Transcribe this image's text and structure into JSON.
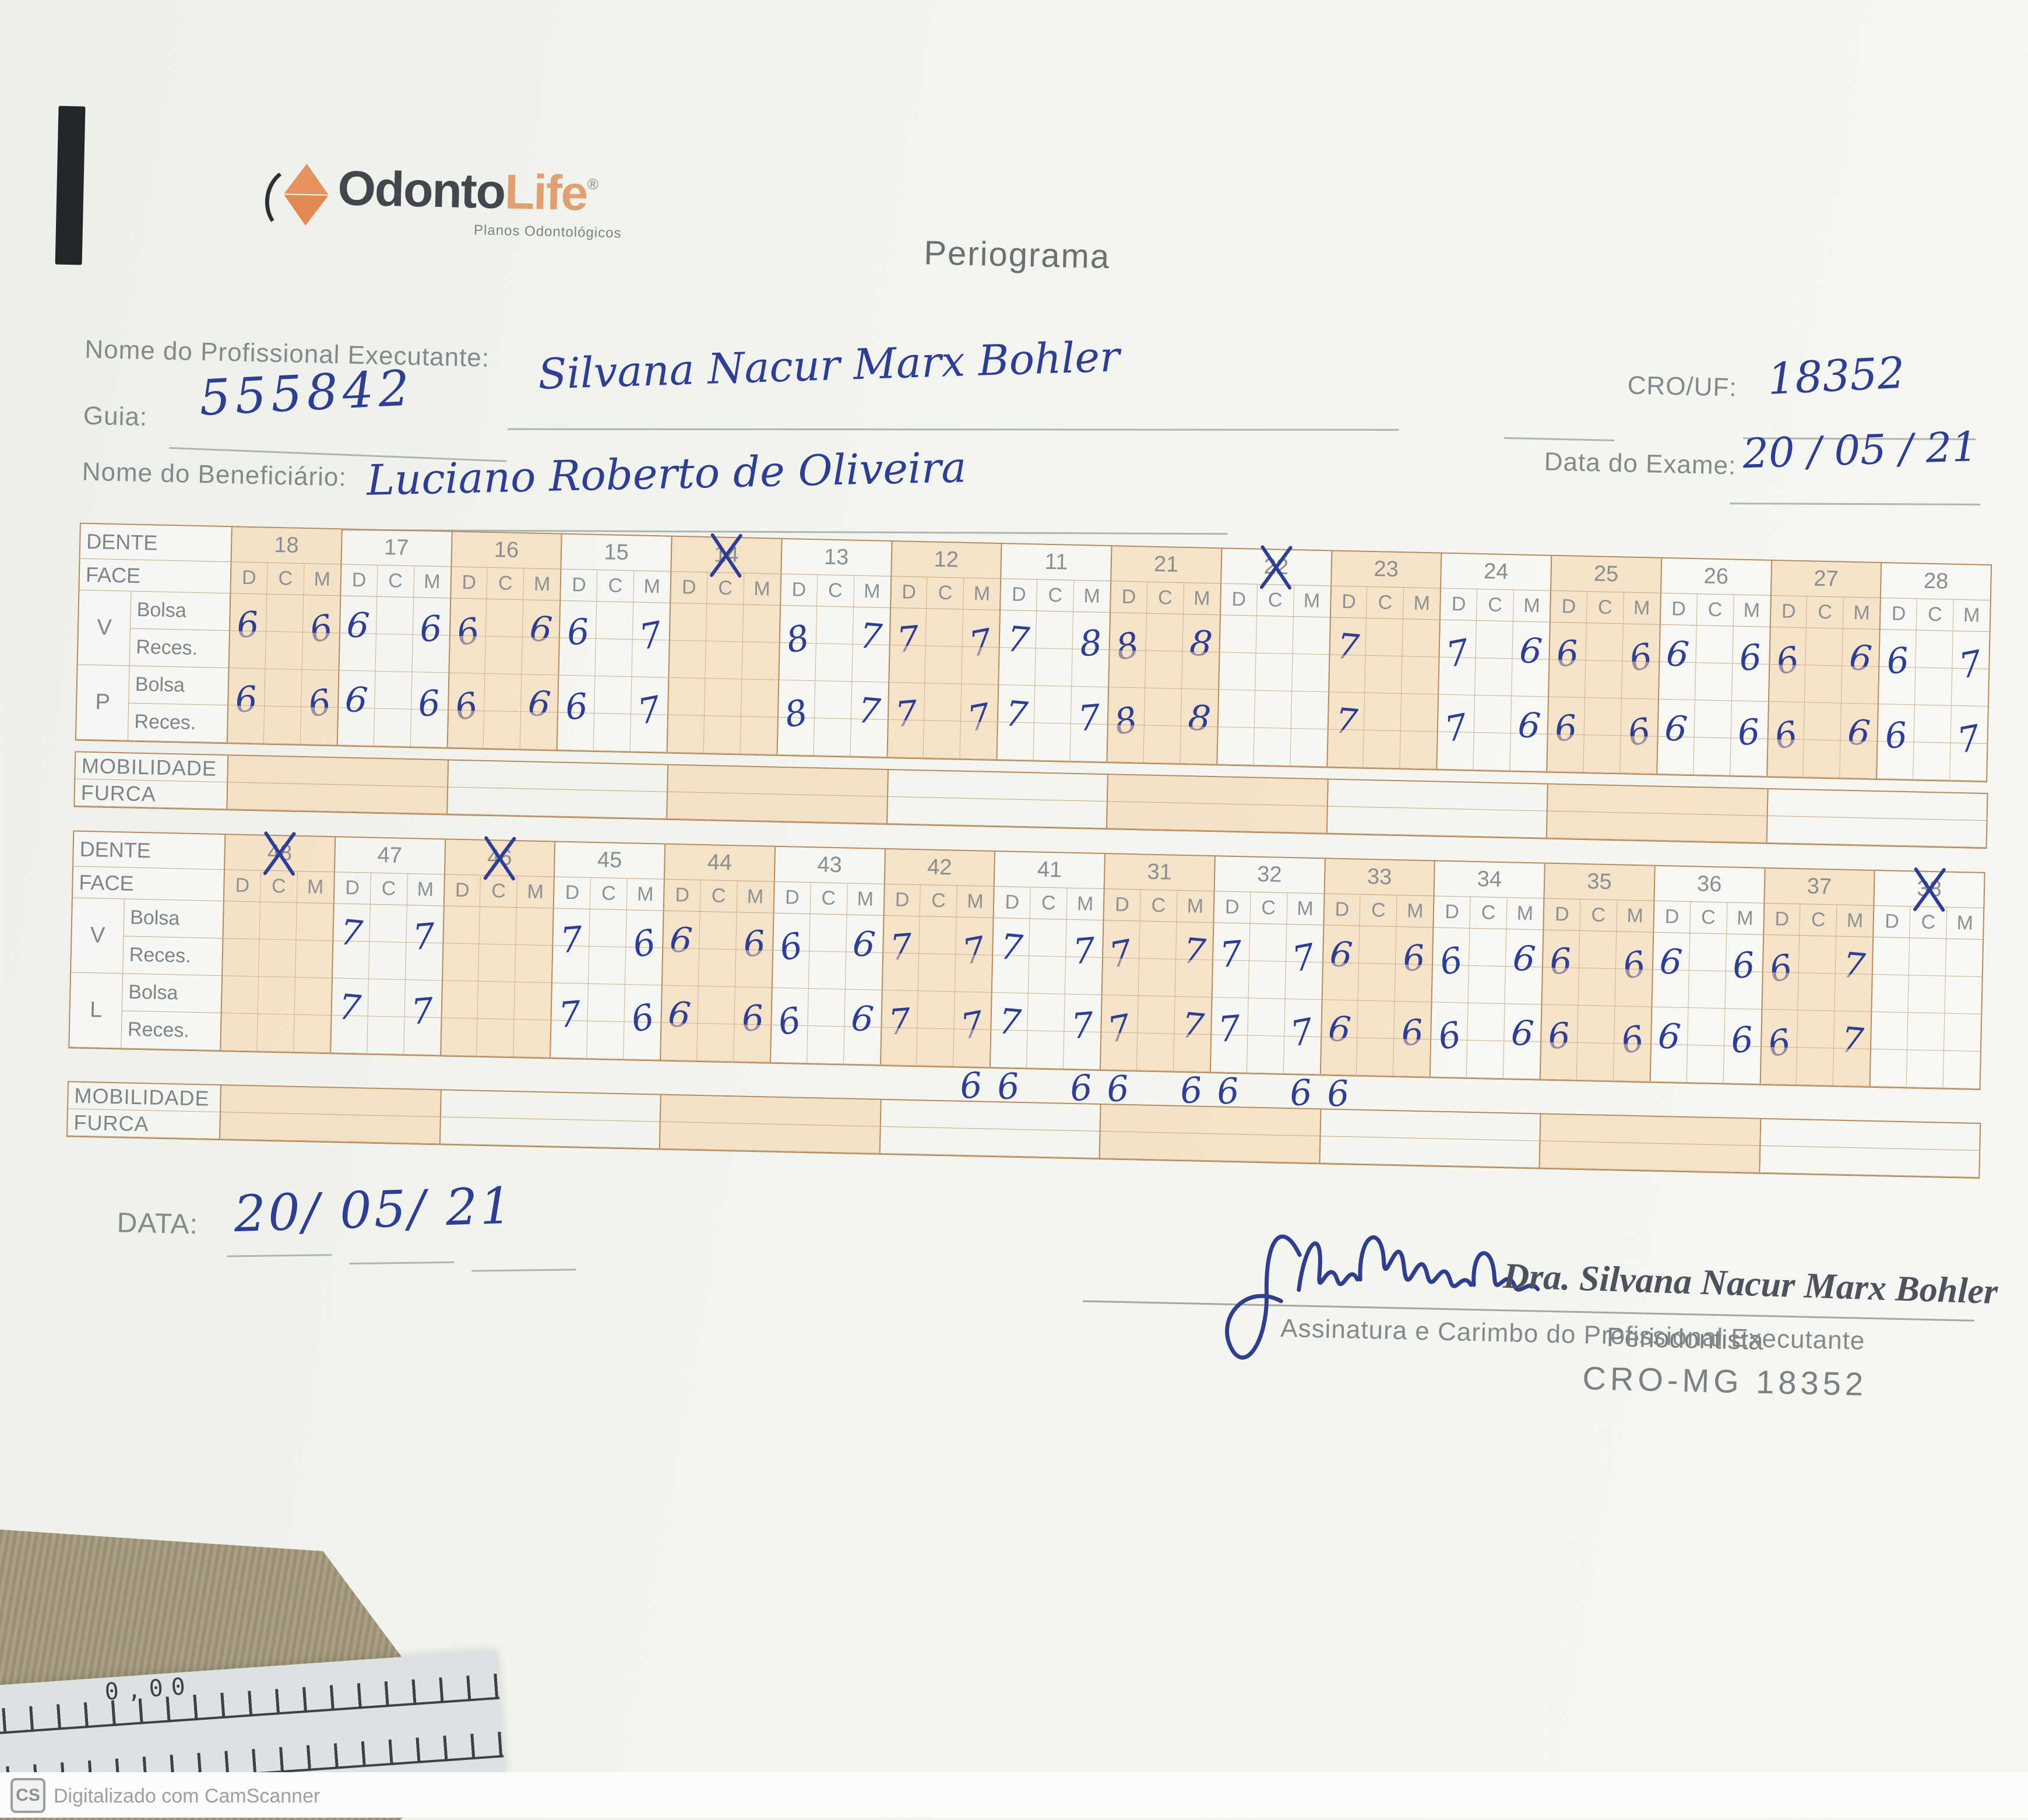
{
  "page": {
    "title": "Periograma"
  },
  "logo": {
    "brand_part1": "Odonto",
    "brand_part2": "Life",
    "reg_mark": "®",
    "subtitle": "Planos Odontológicos",
    "accent_color": "#e0915c",
    "dark_color": "#43474d"
  },
  "fields": {
    "professional_label": "Nome do Profissional Executante:",
    "professional_value": "Silvana Nacur Marx Bohler",
    "cro_label": "CRO/UF:",
    "cro_value": "18352",
    "guia_label": "Guia:",
    "guia_value": "555842",
    "exam_date_label": "Data do Exame:",
    "exam_date_value": "20 / 05 / 21",
    "beneficiary_label": "Nome do Beneficiário:",
    "beneficiary_value": "Luciano Roberto de Oliveira"
  },
  "table_labels": {
    "dente": "DENTE",
    "face": "FACE",
    "bolsa": "Bolsa",
    "reces": "Reces.",
    "mobilidade": "MOBILIDADE",
    "furca": "FURCA",
    "face_cols": [
      "D",
      "C",
      "M"
    ]
  },
  "upper_table": {
    "side_groups": [
      {
        "side": "V",
        "rows": [
          {
            "key": "v_bolsa",
            "label": "Bolsa"
          },
          {
            "key": "v_reces",
            "label": "Reces."
          }
        ]
      },
      {
        "side": "P",
        "rows": [
          {
            "key": "p_bolsa",
            "label": "Bolsa"
          },
          {
            "key": "p_reces",
            "label": "Reces."
          }
        ]
      }
    ],
    "teeth": [
      {
        "num": "18",
        "crossed": false,
        "v_bolsa": [
          "6",
          "",
          "6"
        ],
        "v_reces": [
          "",
          "",
          ""
        ],
        "p_bolsa": [
          "6",
          "",
          "6"
        ],
        "p_reces": [
          "",
          "",
          ""
        ]
      },
      {
        "num": "17",
        "crossed": false,
        "v_bolsa": [
          "6",
          "",
          "6"
        ],
        "v_reces": [
          "",
          "",
          ""
        ],
        "p_bolsa": [
          "6",
          "",
          "6"
        ],
        "p_reces": [
          "",
          "",
          ""
        ]
      },
      {
        "num": "16",
        "crossed": false,
        "v_bolsa": [
          "6",
          "",
          "6"
        ],
        "v_reces": [
          "",
          "",
          ""
        ],
        "p_bolsa": [
          "6",
          "",
          "6"
        ],
        "p_reces": [
          "",
          "",
          ""
        ]
      },
      {
        "num": "15",
        "crossed": false,
        "v_bolsa": [
          "6",
          "",
          "7"
        ],
        "v_reces": [
          "",
          "",
          ""
        ],
        "p_bolsa": [
          "6",
          "",
          "7"
        ],
        "p_reces": [
          "",
          "",
          ""
        ]
      },
      {
        "num": "14",
        "crossed": true,
        "v_bolsa": [
          "",
          "",
          ""
        ],
        "v_reces": [
          "",
          "",
          ""
        ],
        "p_bolsa": [
          "",
          "",
          ""
        ],
        "p_reces": [
          "",
          "",
          ""
        ]
      },
      {
        "num": "13",
        "crossed": false,
        "v_bolsa": [
          "8",
          "",
          "7"
        ],
        "v_reces": [
          "",
          "",
          ""
        ],
        "p_bolsa": [
          "8",
          "",
          "7"
        ],
        "p_reces": [
          "",
          "",
          ""
        ]
      },
      {
        "num": "12",
        "crossed": false,
        "v_bolsa": [
          "7",
          "",
          "7"
        ],
        "v_reces": [
          "",
          "",
          ""
        ],
        "p_bolsa": [
          "7",
          "",
          "7"
        ],
        "p_reces": [
          "",
          "",
          ""
        ]
      },
      {
        "num": "11",
        "crossed": false,
        "v_bolsa": [
          "7",
          "",
          "8"
        ],
        "v_reces": [
          "",
          "",
          ""
        ],
        "p_bolsa": [
          "7",
          "",
          "7"
        ],
        "p_reces": [
          "",
          "",
          ""
        ]
      },
      {
        "num": "21",
        "crossed": false,
        "v_bolsa": [
          "8",
          "",
          "8"
        ],
        "v_reces": [
          "",
          "",
          ""
        ],
        "p_bolsa": [
          "8",
          "",
          "8"
        ],
        "p_reces": [
          "",
          "",
          ""
        ]
      },
      {
        "num": "22",
        "crossed": true,
        "v_bolsa": [
          "",
          "",
          ""
        ],
        "v_reces": [
          "",
          "",
          ""
        ],
        "p_bolsa": [
          "",
          "",
          ""
        ],
        "p_reces": [
          "",
          "",
          ""
        ]
      },
      {
        "num": "23",
        "crossed": false,
        "v_bolsa": [
          "7",
          "",
          ""
        ],
        "v_reces": [
          "",
          "",
          ""
        ],
        "p_bolsa": [
          "7",
          "",
          ""
        ],
        "p_reces": [
          "",
          "",
          ""
        ]
      },
      {
        "num": "24",
        "crossed": false,
        "v_bolsa": [
          "7",
          "",
          "6"
        ],
        "v_reces": [
          "",
          "",
          ""
        ],
        "p_bolsa": [
          "7",
          "",
          "6"
        ],
        "p_reces": [
          "",
          "",
          ""
        ]
      },
      {
        "num": "25",
        "crossed": false,
        "v_bolsa": [
          "6",
          "",
          "6"
        ],
        "v_reces": [
          "",
          "",
          ""
        ],
        "p_bolsa": [
          "6",
          "",
          "6"
        ],
        "p_reces": [
          "",
          "",
          ""
        ]
      },
      {
        "num": "26",
        "crossed": false,
        "v_bolsa": [
          "6",
          "",
          "6"
        ],
        "v_reces": [
          "",
          "",
          ""
        ],
        "p_bolsa": [
          "6",
          "",
          "6"
        ],
        "p_reces": [
          "",
          "",
          ""
        ]
      },
      {
        "num": "27",
        "crossed": false,
        "v_bolsa": [
          "6",
          "",
          "6"
        ],
        "v_reces": [
          "",
          "",
          ""
        ],
        "p_bolsa": [
          "6",
          "",
          "6"
        ],
        "p_reces": [
          "",
          "",
          ""
        ]
      },
      {
        "num": "28",
        "crossed": false,
        "v_bolsa": [
          "6",
          "",
          "7"
        ],
        "v_reces": [
          "",
          "",
          ""
        ],
        "p_bolsa": [
          "6",
          "",
          "7"
        ],
        "p_reces": [
          "",
          "",
          ""
        ]
      }
    ]
  },
  "lower_table": {
    "side_groups": [
      {
        "side": "V",
        "rows": [
          {
            "key": "v_bolsa",
            "label": "Bolsa"
          },
          {
            "key": "v_reces",
            "label": "Reces."
          }
        ]
      },
      {
        "side": "L",
        "rows": [
          {
            "key": "l_bolsa",
            "label": "Bolsa"
          },
          {
            "key": "l_reces",
            "label": "Reces."
          }
        ]
      }
    ],
    "teeth": [
      {
        "num": "48",
        "crossed": true,
        "v_bolsa": [
          "",
          "",
          ""
        ],
        "v_reces": [
          "",
          "",
          ""
        ],
        "l_bolsa": [
          "",
          "",
          ""
        ],
        "l_reces": [
          "",
          "",
          ""
        ]
      },
      {
        "num": "47",
        "crossed": false,
        "v_bolsa": [
          "7",
          "",
          "7"
        ],
        "v_reces": [
          "",
          "",
          ""
        ],
        "l_bolsa": [
          "7",
          "",
          "7"
        ],
        "l_reces": [
          "",
          "",
          ""
        ]
      },
      {
        "num": "46",
        "crossed": true,
        "v_bolsa": [
          "",
          "",
          ""
        ],
        "v_reces": [
          "",
          "",
          ""
        ],
        "l_bolsa": [
          "",
          "",
          ""
        ],
        "l_reces": [
          "",
          "",
          ""
        ]
      },
      {
        "num": "45",
        "crossed": false,
        "v_bolsa": [
          "7",
          "",
          "6"
        ],
        "v_reces": [
          "",
          "",
          ""
        ],
        "l_bolsa": [
          "7",
          "",
          "6"
        ],
        "l_reces": [
          "",
          "",
          ""
        ]
      },
      {
        "num": "44",
        "crossed": false,
        "v_bolsa": [
          "6",
          "",
          "6"
        ],
        "v_reces": [
          "",
          "",
          ""
        ],
        "l_bolsa": [
          "6",
          "",
          "6"
        ],
        "l_reces": [
          "",
          "",
          ""
        ]
      },
      {
        "num": "43",
        "crossed": false,
        "v_bolsa": [
          "6",
          "",
          "6"
        ],
        "v_reces": [
          "",
          "",
          ""
        ],
        "l_bolsa": [
          "6",
          "",
          "6"
        ],
        "l_reces": [
          "",
          "",
          ""
        ]
      },
      {
        "num": "42",
        "crossed": false,
        "v_bolsa": [
          "7",
          "",
          "7"
        ],
        "v_reces": [
          "",
          "",
          ""
        ],
        "l_bolsa": [
          "7",
          "",
          "7"
        ],
        "l_reces": [
          "",
          "",
          "6"
        ]
      },
      {
        "num": "41",
        "crossed": false,
        "v_bolsa": [
          "7",
          "",
          "7"
        ],
        "v_reces": [
          "",
          "",
          ""
        ],
        "l_bolsa": [
          "7",
          "",
          "7"
        ],
        "l_reces": [
          "6",
          "",
          "6"
        ]
      },
      {
        "num": "31",
        "crossed": false,
        "v_bolsa": [
          "7",
          "",
          "7"
        ],
        "v_reces": [
          "",
          "",
          ""
        ],
        "l_bolsa": [
          "7",
          "",
          "7"
        ],
        "l_reces": [
          "6",
          "",
          "6"
        ]
      },
      {
        "num": "32",
        "crossed": false,
        "v_bolsa": [
          "7",
          "",
          "7"
        ],
        "v_reces": [
          "",
          "",
          ""
        ],
        "l_bolsa": [
          "7",
          "",
          "7"
        ],
        "l_reces": [
          "6",
          "",
          "6"
        ]
      },
      {
        "num": "33",
        "crossed": false,
        "v_bolsa": [
          "6",
          "",
          "6"
        ],
        "v_reces": [
          "",
          "",
          ""
        ],
        "l_bolsa": [
          "6",
          "",
          "6"
        ],
        "l_reces": [
          "6",
          "",
          ""
        ]
      },
      {
        "num": "34",
        "crossed": false,
        "v_bolsa": [
          "6",
          "",
          "6"
        ],
        "v_reces": [
          "",
          "",
          ""
        ],
        "l_bolsa": [
          "6",
          "",
          "6"
        ],
        "l_reces": [
          "",
          "",
          ""
        ]
      },
      {
        "num": "35",
        "crossed": false,
        "v_bolsa": [
          "6",
          "",
          "6"
        ],
        "v_reces": [
          "",
          "",
          ""
        ],
        "l_bolsa": [
          "6",
          "",
          "6"
        ],
        "l_reces": [
          "",
          "",
          ""
        ]
      },
      {
        "num": "36",
        "crossed": false,
        "v_bolsa": [
          "6",
          "",
          "6"
        ],
        "v_reces": [
          "",
          "",
          ""
        ],
        "l_bolsa": [
          "6",
          "",
          "6"
        ],
        "l_reces": [
          "",
          "",
          ""
        ]
      },
      {
        "num": "37",
        "crossed": false,
        "v_bolsa": [
          "6",
          "",
          "7"
        ],
        "v_reces": [
          "",
          "",
          ""
        ],
        "l_bolsa": [
          "6",
          "",
          "7"
        ],
        "l_reces": [
          "",
          "",
          ""
        ]
      },
      {
        "num": "38",
        "crossed": true,
        "v_bolsa": [
          "",
          "",
          ""
        ],
        "v_reces": [
          "",
          "",
          ""
        ],
        "l_bolsa": [
          "",
          "",
          ""
        ],
        "l_reces": [
          "",
          "",
          ""
        ]
      }
    ]
  },
  "footer": {
    "data_label": "DATA:",
    "data_value": "20/ 05/ 21",
    "signature_caption": "Assinatura e Carimbo do Profissional Executante",
    "stamp_name": "Dra. Silvana Nacur Marx Bohler",
    "stamp_role": "Periodontista",
    "stamp_cro": "CRO-MG 18352"
  },
  "scanner": {
    "badge": "CS",
    "text": "Digitalizado com CamScanner",
    "ruler_text": "0,00"
  },
  "colors": {
    "ink_blue": "#2e3d96",
    "grid_line": "#b78a5d",
    "cell_shade": "#f4d3a8",
    "label_gray": "#7f8487",
    "paper": "#f2f4ee",
    "fabric": "#a29779"
  }
}
